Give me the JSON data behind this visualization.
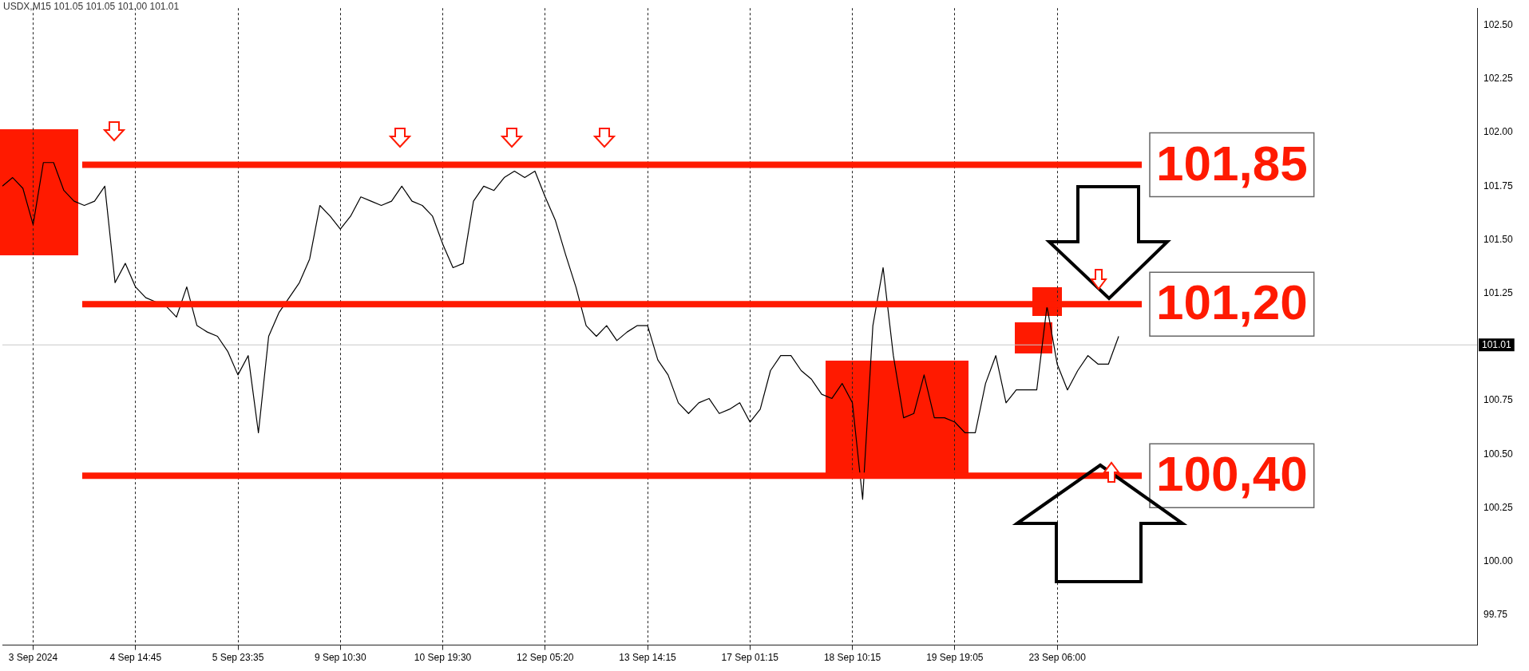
{
  "chart_data": {
    "type": "line",
    "title": "USDX,M15  101.05 101.05 101.00 101.01",
    "categories": [
      null,
      null,
      null,
      "3 Sep 2024",
      null,
      null,
      null,
      null,
      null,
      null,
      null,
      null,
      null,
      "4 Sep 14:45",
      null,
      null,
      null,
      null,
      null,
      null,
      null,
      null,
      null,
      "5 Sep 23:35",
      null,
      null,
      null,
      null,
      null,
      null,
      null,
      null,
      null,
      "9 Sep 10:30",
      null,
      null,
      null,
      null,
      null,
      null,
      null,
      null,
      null,
      "10 Sep 19:30",
      null,
      null,
      null,
      null,
      null,
      null,
      null,
      null,
      null,
      "12 Sep 05:20",
      null,
      null,
      null,
      null,
      null,
      null,
      null,
      null,
      null,
      "13 Sep 14:15",
      null,
      null,
      null,
      null,
      null,
      null,
      null,
      null,
      null,
      "17 Sep 01:15",
      null,
      null,
      null,
      null,
      null,
      null,
      null,
      null,
      null,
      "18 Sep 10:15",
      null,
      null,
      null,
      null,
      null,
      null,
      null,
      null,
      null,
      "19 Sep 19:05",
      null,
      null,
      null,
      null,
      null,
      null,
      null,
      null,
      null,
      "23 Sep 06:00",
      null,
      null,
      null,
      null,
      null,
      null,
      null,
      null,
      null,
      null,
      null,
      null,
      null,
      null,
      null,
      null,
      null,
      null,
      null,
      null,
      null,
      null,
      null,
      null,
      null,
      null,
      null,
      null,
      null,
      null,
      null,
      null,
      null,
      null,
      null,
      null,
      null,
      null,
      null,
      null,
      null
    ],
    "values": [
      101.75,
      101.79,
      101.74,
      101.57,
      101.86,
      101.86,
      101.73,
      101.68,
      101.66,
      101.68,
      101.75,
      101.3,
      101.39,
      101.28,
      101.23,
      101.21,
      101.19,
      101.14,
      101.28,
      101.1,
      101.07,
      101.05,
      100.98,
      100.87,
      100.96,
      100.6,
      101.05,
      101.16,
      101.23,
      101.3,
      101.41,
      101.66,
      101.61,
      101.55,
      101.61,
      101.7,
      101.68,
      101.66,
      101.68,
      101.75,
      101.68,
      101.66,
      101.61,
      101.48,
      101.37,
      101.39,
      101.68,
      101.75,
      101.73,
      101.79,
      101.82,
      101.79,
      101.82,
      101.7,
      101.59,
      101.43,
      101.28,
      101.1,
      101.05,
      101.1,
      101.03,
      101.07,
      101.1,
      101.1,
      100.94,
      100.87,
      100.74,
      100.69,
      100.74,
      100.76,
      100.69,
      100.71,
      100.74,
      100.65,
      100.71,
      100.89,
      100.96,
      100.96,
      100.89,
      100.85,
      100.78,
      100.76,
      100.83,
      100.74,
      100.29,
      101.1,
      101.37,
      100.96,
      100.67,
      100.69,
      100.87,
      100.67,
      100.67,
      100.65,
      100.6,
      100.6,
      100.83,
      100.96,
      100.74,
      100.8,
      100.8,
      100.8,
      101.19,
      100.92,
      100.8,
      100.89,
      100.96,
      100.92,
      100.92,
      101.05,
      null,
      null,
      null,
      null,
      null,
      null,
      null,
      null,
      null,
      null,
      null,
      null,
      null,
      null,
      null,
      null,
      null,
      null,
      null,
      null,
      null,
      null,
      null,
      null,
      null,
      null,
      null,
      null,
      null,
      null,
      null,
      null,
      null,
      null,
      null
    ],
    "color": "#000000",
    "ylim": [
      99.61,
      102.58
    ],
    "yticks": [
      {
        "value": 99.75,
        "label": "99.75"
      },
      {
        "value": 100,
        "label": "100.00"
      },
      {
        "value": 100.25,
        "label": "100.25"
      },
      {
        "value": 100.5,
        "label": "100.50"
      },
      {
        "value": 100.75,
        "label": "100.75"
      },
      {
        "value": 101.25,
        "label": "101.25"
      },
      {
        "value": 101.5,
        "label": "101.50"
      },
      {
        "value": 101.75,
        "label": "101.75"
      },
      {
        "value": 102,
        "label": "102.00"
      },
      {
        "value": 102.25,
        "label": "102.25"
      },
      {
        "value": 102.5,
        "label": "102.50"
      }
    ],
    "grid": "x",
    "ref_lines": [
      {
        "axis": "y",
        "value": 101.85,
        "label": "101,85",
        "color": "#ff1a00"
      },
      {
        "axis": "y",
        "value": 101.2,
        "label": "101,20",
        "color": "#ff1a00"
      },
      {
        "axis": "y",
        "value": 100.4,
        "label": "100,40",
        "color": "#ff1a00"
      },
      {
        "axis": "y",
        "value": 101.01,
        "label": "101.01",
        "color": "#c8c8c8"
      }
    ]
  }
}
